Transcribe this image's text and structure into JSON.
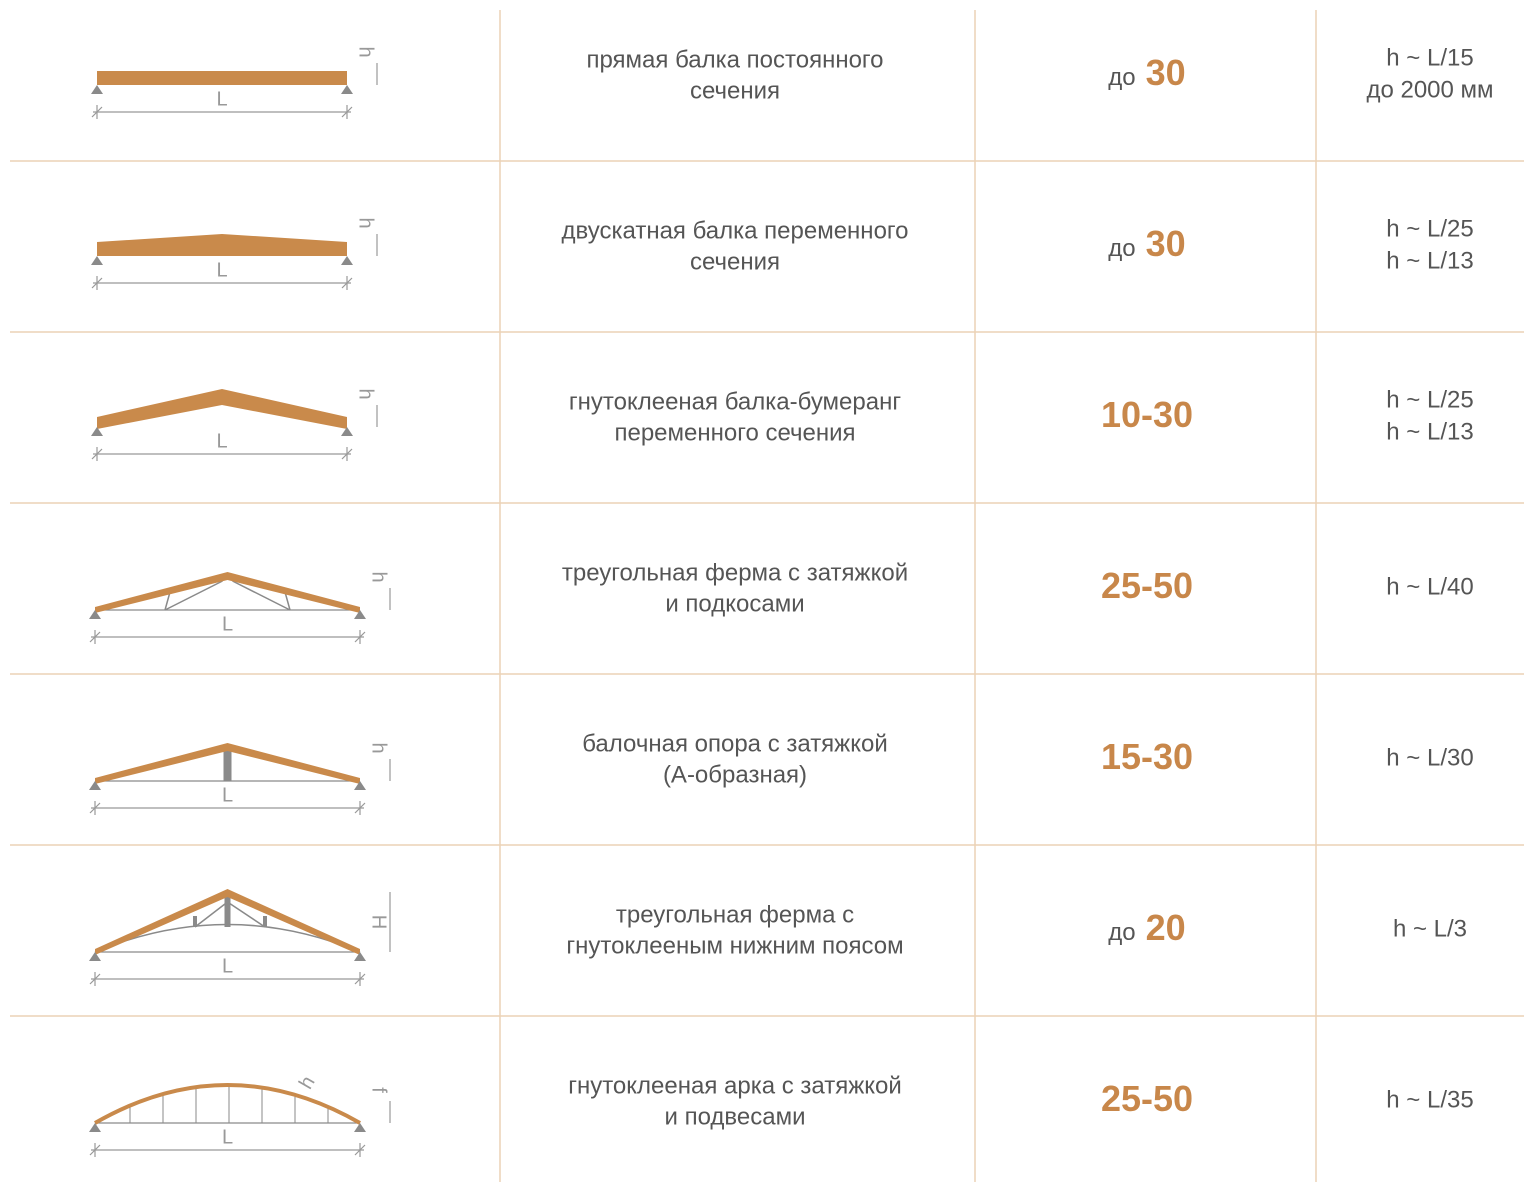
{
  "table": {
    "rows": [
      {
        "diagram": {
          "span": "L",
          "height": "h"
        },
        "name": [
          "прямая балка постоянного",
          "сечения"
        ],
        "span": {
          "prefix": "до",
          "value": "30"
        },
        "ratio": [
          "h ~ L/15",
          "до 2000 мм"
        ]
      },
      {
        "diagram": {
          "span": "L",
          "height": "h"
        },
        "name": [
          "двускатная балка переменного",
          "сечения"
        ],
        "span": {
          "prefix": "до",
          "value": "30"
        },
        "ratio": [
          "h ~ L/25",
          "h ~ L/13"
        ]
      },
      {
        "diagram": {
          "span": "L",
          "height": "h"
        },
        "name": [
          "гнутоклееная балка-бумеранг",
          "переменного сечения"
        ],
        "span": {
          "value": "10-30"
        },
        "ratio": [
          "h ~ L/25",
          "h ~ L/13"
        ]
      },
      {
        "diagram": {
          "span": "L",
          "height": "h"
        },
        "name": [
          "треугольная ферма с затяжкой",
          "и подкосами"
        ],
        "span": {
          "value": "25-50"
        },
        "ratio": [
          "h ~ L/40"
        ]
      },
      {
        "diagram": {
          "span": "L",
          "height": "h"
        },
        "name": [
          "балочная опора с затяжкой",
          "(А-образная)"
        ],
        "span": {
          "value": "15-30"
        },
        "ratio": [
          "h ~ L/30"
        ]
      },
      {
        "diagram": {
          "span": "L",
          "height": "H"
        },
        "name": [
          "треугольная ферма с",
          "гнутоклееным нижним поясом"
        ],
        "span": {
          "prefix": "до",
          "value": "20"
        },
        "ratio": [
          "h ~ L/3"
        ]
      },
      {
        "diagram": {
          "span": "L",
          "height": "f",
          "depth": "h"
        },
        "name": [
          "гнутоклееная арка с затяжкой",
          "и подвесами"
        ],
        "span": {
          "value": "25-50"
        },
        "ratio": [
          "h ~ L/35"
        ]
      }
    ]
  }
}
